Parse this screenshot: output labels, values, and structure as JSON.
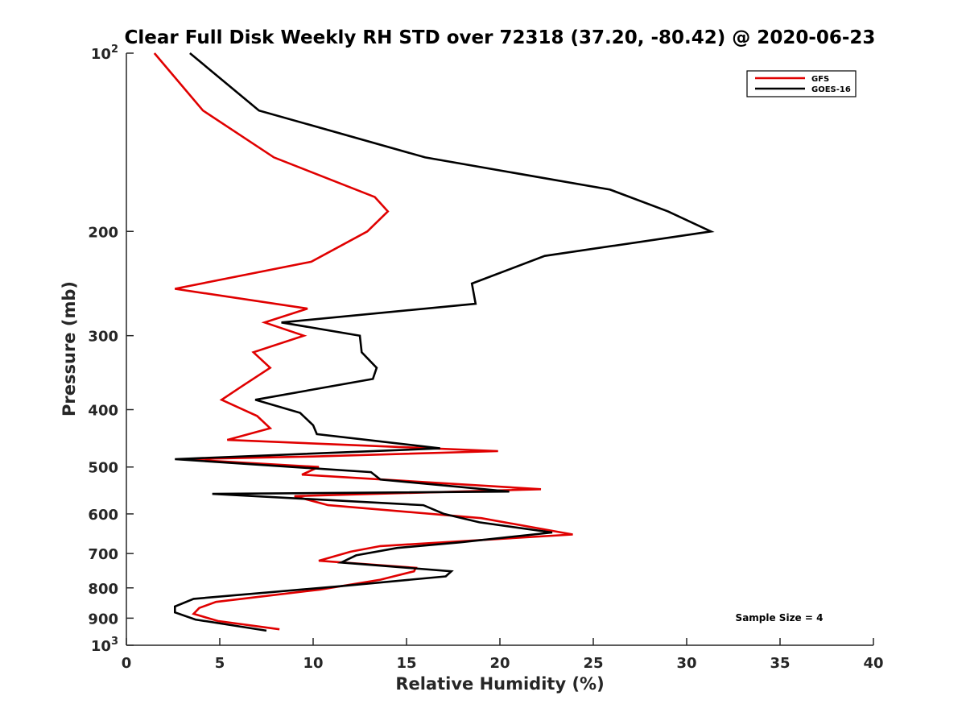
{
  "chart_data": {
    "type": "line",
    "title": "Clear Full Disk Weekly RH STD over 72318 (37.20, -80.42) @ 2020-06-23",
    "xlabel": "Relative Humidity (%)",
    "ylabel": "Pressure (mb)",
    "xlim": [
      0,
      40
    ],
    "ylim": [
      100,
      1000
    ],
    "y_scale": "log",
    "y_reversed": true,
    "grid": false,
    "legend_position": "top-right",
    "x_ticks": [
      "0",
      "5",
      "10",
      "15",
      "20",
      "25",
      "30",
      "35",
      "40"
    ],
    "y_ticks": [
      {
        "value": 100,
        "base": "10",
        "exp": "2"
      },
      {
        "value": 200,
        "label": "200"
      },
      {
        "value": 300,
        "label": "300"
      },
      {
        "value": 400,
        "label": "400"
      },
      {
        "value": 500,
        "label": "500"
      },
      {
        "value": 600,
        "label": "600"
      },
      {
        "value": 700,
        "label": "700"
      },
      {
        "value": 800,
        "label": "800"
      },
      {
        "value": 900,
        "label": "900"
      },
      {
        "value": 1000,
        "base": "10",
        "exp": "3"
      }
    ],
    "annotation": "Sample Size = 4",
    "series": [
      {
        "name": "GFS",
        "color": "#e00000",
        "points": [
          [
            1.5,
            100
          ],
          [
            4.1,
            125
          ],
          [
            7.9,
            150
          ],
          [
            13.3,
            175
          ],
          [
            14.0,
            185
          ],
          [
            12.9,
            200
          ],
          [
            9.9,
            225
          ],
          [
            2.6,
            250
          ],
          [
            9.7,
            270
          ],
          [
            7.4,
            285
          ],
          [
            9.5,
            300
          ],
          [
            6.8,
            320
          ],
          [
            7.7,
            340
          ],
          [
            6.2,
            365
          ],
          [
            5.1,
            385
          ],
          [
            7.0,
            410
          ],
          [
            7.7,
            430
          ],
          [
            5.4,
            450
          ],
          [
            19.9,
            470
          ],
          [
            10.0,
            480
          ],
          [
            3.0,
            485
          ],
          [
            10.3,
            500
          ],
          [
            9.4,
            515
          ],
          [
            22.2,
            545
          ],
          [
            9.0,
            560
          ],
          [
            10.8,
            580
          ],
          [
            19.0,
            610
          ],
          [
            23.9,
            650
          ],
          [
            13.6,
            680
          ],
          [
            12.0,
            695
          ],
          [
            10.3,
            720
          ],
          [
            15.5,
            740
          ],
          [
            15.4,
            750
          ],
          [
            13.6,
            775
          ],
          [
            10.4,
            805
          ],
          [
            4.8,
            845
          ],
          [
            3.9,
            865
          ],
          [
            3.6,
            885
          ],
          [
            4.9,
            910
          ],
          [
            8.2,
            940
          ]
        ]
      },
      {
        "name": "GOES-16",
        "color": "#000000",
        "points": [
          [
            3.4,
            100
          ],
          [
            7.1,
            125
          ],
          [
            16.0,
            150
          ],
          [
            25.9,
            170
          ],
          [
            29.0,
            185
          ],
          [
            31.3,
            200
          ],
          [
            22.4,
            220
          ],
          [
            18.5,
            245
          ],
          [
            18.7,
            265
          ],
          [
            8.3,
            285
          ],
          [
            12.5,
            300
          ],
          [
            12.6,
            320
          ],
          [
            13.4,
            340
          ],
          [
            13.2,
            355
          ],
          [
            6.9,
            385
          ],
          [
            9.3,
            405
          ],
          [
            10.0,
            425
          ],
          [
            10.2,
            440
          ],
          [
            16.8,
            465
          ],
          [
            2.6,
            485
          ],
          [
            13.1,
            510
          ],
          [
            13.6,
            525
          ],
          [
            20.5,
            550
          ],
          [
            4.6,
            555
          ],
          [
            15.9,
            580
          ],
          [
            17.0,
            600
          ],
          [
            18.9,
            620
          ],
          [
            22.8,
            645
          ],
          [
            17.9,
            670
          ],
          [
            14.5,
            685
          ],
          [
            12.3,
            705
          ],
          [
            11.5,
            725
          ],
          [
            17.4,
            750
          ],
          [
            17.1,
            765
          ],
          [
            11.4,
            795
          ],
          [
            3.6,
            835
          ],
          [
            2.6,
            860
          ],
          [
            2.6,
            880
          ],
          [
            3.7,
            905
          ],
          [
            7.5,
            945
          ]
        ]
      }
    ]
  }
}
